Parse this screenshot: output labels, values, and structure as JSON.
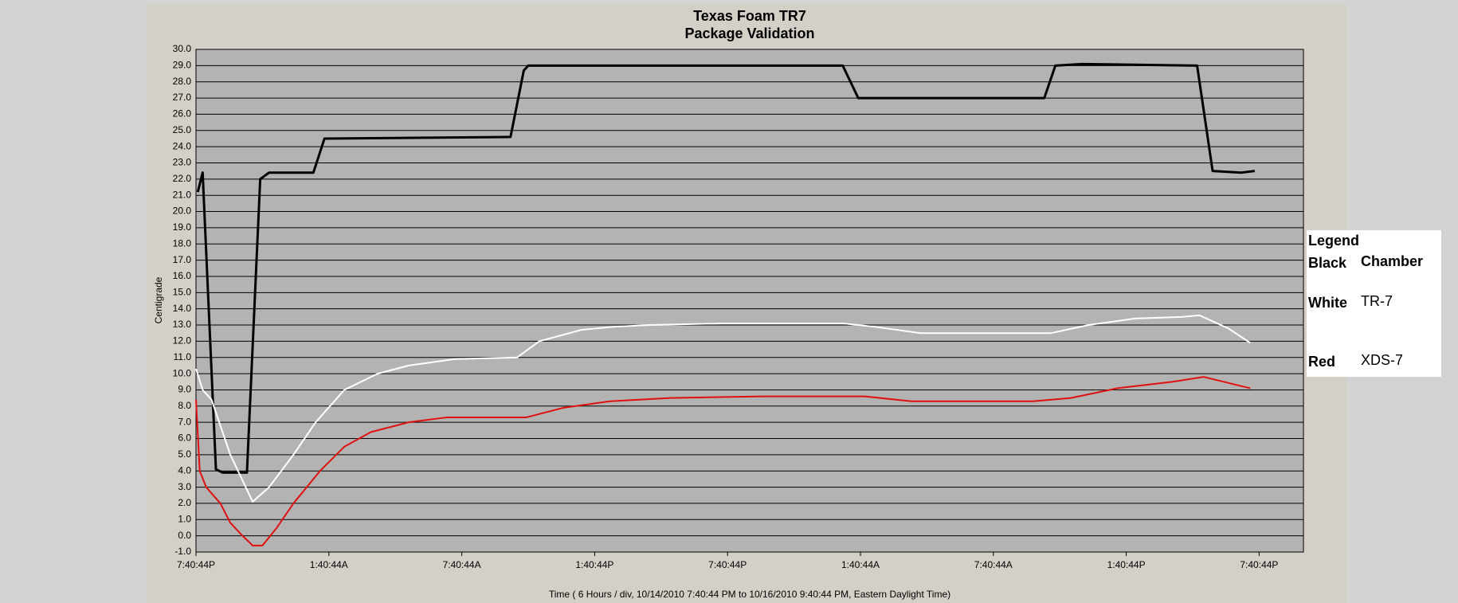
{
  "chart_data": {
    "type": "line",
    "title": "Texas Foam TR7",
    "subtitle": "Package Validation",
    "y_label": "Centigrade",
    "x_label": "Time ( 6 Hours / div, 10/14/2010 7:40:44 PM to 10/16/2010 9:40:44 PM, Eastern Daylight Time)",
    "xlim": [
      0,
      50
    ],
    "xticks": [
      {
        "value": 0,
        "label": "7:40:44P"
      },
      {
        "value": 6,
        "label": "1:40:44A"
      },
      {
        "value": 12,
        "label": "7:40:44A"
      },
      {
        "value": 18,
        "label": "1:40:44P"
      },
      {
        "value": 24,
        "label": "7:40:44P"
      },
      {
        "value": 30,
        "label": "1:40:44A"
      },
      {
        "value": 36,
        "label": "7:40:44A"
      },
      {
        "value": 42,
        "label": "1:40:44P"
      },
      {
        "value": 48,
        "label": "7:40:44P"
      }
    ],
    "ylim": [
      -1,
      30
    ],
    "yticks": [
      {
        "value": -1,
        "label": "-1.0"
      },
      {
        "value": 0,
        "label": "0.0"
      },
      {
        "value": 1,
        "label": "1.0"
      },
      {
        "value": 2,
        "label": "2.0"
      },
      {
        "value": 3,
        "label": "3.0"
      },
      {
        "value": 4,
        "label": "4.0"
      },
      {
        "value": 5,
        "label": "5.0"
      },
      {
        "value": 6,
        "label": "6.0"
      },
      {
        "value": 7,
        "label": "7.0"
      },
      {
        "value": 8,
        "label": "8.0"
      },
      {
        "value": 9,
        "label": "9.0"
      },
      {
        "value": 10,
        "label": "10.0"
      },
      {
        "value": 11,
        "label": "11.0"
      },
      {
        "value": 12,
        "label": "12.0"
      },
      {
        "value": 13,
        "label": "13.0"
      },
      {
        "value": 14,
        "label": "14.0"
      },
      {
        "value": 15,
        "label": "15.0"
      },
      {
        "value": 16,
        "label": "16.0"
      },
      {
        "value": 17,
        "label": "17.0"
      },
      {
        "value": 18,
        "label": "18.0"
      },
      {
        "value": 19,
        "label": "19.0"
      },
      {
        "value": 20,
        "label": "20.0"
      },
      {
        "value": 21,
        "label": "21.0"
      },
      {
        "value": 22,
        "label": "22.0"
      },
      {
        "value": 23,
        "label": "23.0"
      },
      {
        "value": 24,
        "label": "24.0"
      },
      {
        "value": 25,
        "label": "25.0"
      },
      {
        "value": 26,
        "label": "26.0"
      },
      {
        "value": 27,
        "label": "27.0"
      },
      {
        "value": 28,
        "label": "28.0"
      },
      {
        "value": 29,
        "label": "29.0"
      },
      {
        "value": 30,
        "label": "30.0"
      }
    ],
    "grid": true,
    "legend_title": "Legend",
    "legend_position": "right",
    "series": [
      {
        "name": "Chamber",
        "color_label": "Black",
        "color": "#000000",
        "width": 3,
        "x": [
          0.08,
          0.3,
          0.9,
          1.2,
          2.3,
          2.9,
          3.3,
          5.3,
          5.8,
          14.2,
          14.8,
          15.0,
          29.2,
          29.9,
          38.3,
          38.8,
          40.0,
          45.2,
          45.9,
          47.2,
          47.8
        ],
        "values": [
          21.2,
          22.4,
          4.1,
          3.9,
          3.9,
          22.0,
          22.4,
          22.4,
          24.5,
          24.6,
          28.7,
          29.0,
          29.0,
          27.0,
          27.0,
          29.0,
          29.1,
          29.0,
          22.5,
          22.4,
          22.5
        ]
      },
      {
        "name": "TR-7",
        "color_label": "White",
        "color": "#ffffff",
        "width": 2,
        "x": [
          0.0,
          0.3,
          0.7,
          1.55,
          2.56,
          3.3,
          4.4,
          5.4,
          6.7,
          8.2,
          9.6,
          11.7,
          14.5,
          15.5,
          17.4,
          18.9,
          20.5,
          23.9,
          29.2,
          30.6,
          32.7,
          38.6,
          40.3,
          42.4,
          44.5,
          45.3,
          46.6,
          47.6
        ],
        "values": [
          10.3,
          9.0,
          8.4,
          5.0,
          2.1,
          3.0,
          5.0,
          7.0,
          9.0,
          10.0,
          10.5,
          10.9,
          11.0,
          12.0,
          12.7,
          12.9,
          13.0,
          13.1,
          13.1,
          12.9,
          12.5,
          12.5,
          13.0,
          13.4,
          13.5,
          13.6,
          12.8,
          11.9
        ]
      },
      {
        "name": "XDS-7",
        "color_label": "Red",
        "color": "#e01010",
        "width": 2,
        "x": [
          0.0,
          0.17,
          0.46,
          1.1,
          1.55,
          2.1,
          2.56,
          3.0,
          3.65,
          4.4,
          5.6,
          6.7,
          7.9,
          9.6,
          11.3,
          14.9,
          16.6,
          18.7,
          21.4,
          25.6,
          30.2,
          32.3,
          37.8,
          39.5,
          41.6,
          44.1,
          45.5,
          47.6
        ],
        "values": [
          8.4,
          4.0,
          3.0,
          2.0,
          0.8,
          0.0,
          -0.6,
          -0.6,
          0.5,
          2.0,
          4.0,
          5.5,
          6.4,
          7.0,
          7.3,
          7.3,
          7.9,
          8.3,
          8.5,
          8.6,
          8.6,
          8.3,
          8.3,
          8.5,
          9.1,
          9.5,
          9.8,
          9.1
        ]
      }
    ]
  }
}
